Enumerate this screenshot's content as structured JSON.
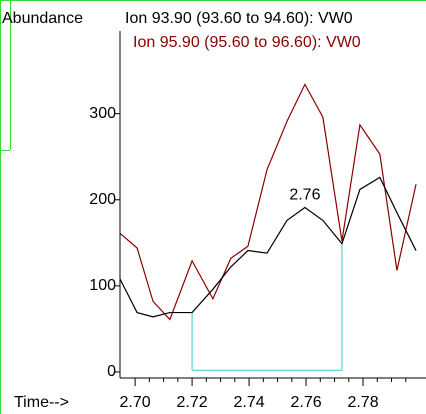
{
  "chart_data": {
    "type": "line",
    "y_axis_label": "Abundance",
    "x_axis_label": "Time-->",
    "x": [
      2.6947,
      2.7007,
      2.7063,
      2.7122,
      2.72,
      2.7273,
      2.7336,
      2.7396,
      2.7463,
      2.7533,
      2.7596,
      2.7659,
      2.7726,
      2.7789,
      2.7859,
      2.7919,
      2.7986
    ],
    "series": [
      {
        "name": "Ion 93.90 (93.60 to 94.60): VW0",
        "color": "#000000",
        "values": [
          108,
          69,
          64,
          69,
          69,
          96,
          122,
          141,
          138,
          176,
          191,
          176,
          149,
          212,
          226,
          185,
          141
        ]
      },
      {
        "name": "Ion 95.90 (95.60 to 96.60): VW0",
        "color": "#8b0000",
        "values": [
          161,
          144,
          82,
          61,
          129,
          85,
          132,
          146,
          235,
          291,
          334,
          296,
          152,
          287,
          253,
          118,
          218
        ]
      }
    ],
    "peak_label": "2.76",
    "integration": {
      "start": 2.72,
      "end": 2.7726,
      "baseline": 2,
      "color": "#33cccc"
    },
    "xlim": [
      2.6947,
      2.8021
    ],
    "ylim": [
      -7,
      396
    ],
    "xticks": [
      {
        "value": 2.7,
        "label": "2.70"
      },
      {
        "value": 2.72,
        "label": "2.72"
      },
      {
        "value": 2.74,
        "label": "2.74"
      },
      {
        "value": 2.76,
        "label": "2.76"
      },
      {
        "value": 2.78,
        "label": "2.78"
      }
    ],
    "xminorticks": [
      2.705,
      2.71,
      2.715,
      2.725,
      2.73,
      2.735,
      2.745,
      2.75,
      2.755,
      2.765,
      2.77,
      2.775,
      2.785,
      2.79,
      2.795
    ],
    "yticks": [
      0,
      100,
      200,
      300
    ]
  }
}
